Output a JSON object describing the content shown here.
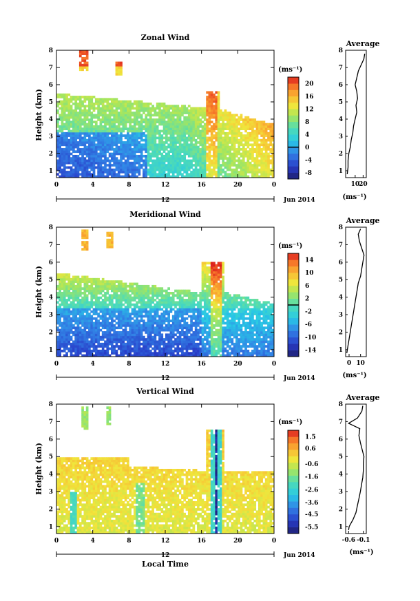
{
  "page": {
    "xlabel": "Local Time",
    "date_label": "Jun 2014",
    "day_label": "12"
  },
  "chart_data": [
    {
      "type": "heatmap",
      "title": "Zonal Wind",
      "ylabel": "Height (km)",
      "xlabel": "Local Time",
      "x_ticks": [
        "0",
        "4",
        "8",
        "12",
        "16",
        "20",
        "0"
      ],
      "y_ticks": [
        "1",
        "2",
        "3",
        "4",
        "5",
        "6",
        "7",
        "8"
      ],
      "xlim": [
        0,
        24
      ],
      "ylim": [
        0.6,
        8
      ],
      "colorbar": {
        "unit": "(ms⁻¹)",
        "ticks": [
          "20",
          "16",
          "12",
          "8",
          "4",
          "0",
          "-4",
          "-8"
        ],
        "range": [
          -10,
          22
        ],
        "zero_line": 0
      },
      "profile": {
        "title": "Average",
        "xlabel": "(ms⁻¹)",
        "x_ticks": [
          "10",
          "20"
        ],
        "xlim": [
          -2,
          24
        ],
        "height": [
          0.8,
          1.2,
          1.6,
          2.0,
          2.4,
          2.8,
          3.2,
          3.6,
          4.0,
          4.4,
          4.8,
          5.2,
          5.6,
          6.0,
          6.4,
          6.8,
          7.2,
          7.5,
          7.8
        ],
        "value": [
          0,
          1,
          1,
          2,
          4,
          5,
          7,
          8,
          10,
          12,
          11,
          13,
          12,
          10,
          12,
          14,
          18,
          21,
          22
        ]
      }
    },
    {
      "type": "heatmap",
      "title": "Meridional Wind",
      "ylabel": "Height (km)",
      "xlabel": "Local Time",
      "x_ticks": [
        "0",
        "4",
        "8",
        "12",
        "16",
        "20",
        "0"
      ],
      "y_ticks": [
        "1",
        "2",
        "3",
        "4",
        "5",
        "6",
        "7",
        "8"
      ],
      "xlim": [
        0,
        24
      ],
      "ylim": [
        0.6,
        8
      ],
      "colorbar": {
        "unit": "(ms⁻¹)",
        "ticks": [
          "14",
          "10",
          "6",
          "2",
          "-2",
          "-6",
          "-10",
          "-14"
        ],
        "range": [
          -16,
          16
        ],
        "zero_line": 0
      },
      "profile": {
        "title": "Average",
        "xlabel": "(ms⁻¹)",
        "x_ticks": [
          "0",
          "10"
        ],
        "xlim": [
          -3,
          15
        ],
        "height": [
          0.8,
          1.2,
          1.6,
          2.0,
          2.4,
          2.8,
          3.2,
          3.6,
          4.0,
          4.4,
          4.8,
          5.2,
          5.6,
          6.0,
          6.4,
          6.8,
          7.2,
          7.6,
          7.9
        ],
        "value": [
          -2,
          -1,
          0,
          1,
          2,
          3,
          4,
          5,
          6,
          7,
          8,
          10,
          11,
          12,
          13,
          11,
          9,
          8,
          10
        ]
      }
    },
    {
      "type": "heatmap",
      "title": "Vertical Wind",
      "ylabel": "Height (km)",
      "xlabel": "Local Time",
      "x_ticks": [
        "0",
        "4",
        "8",
        "12",
        "16",
        "20",
        "0"
      ],
      "y_ticks": [
        "1",
        "2",
        "3",
        "4",
        "5",
        "6",
        "7",
        "8"
      ],
      "xlim": [
        0,
        24
      ],
      "ylim": [
        0.6,
        8
      ],
      "colorbar": {
        "unit": "(ms⁻¹)",
        "ticks": [
          "1.5",
          "0.6",
          "-0.6",
          "-1.6",
          "-2.6",
          "-3.6",
          "-4.5",
          "-5.5"
        ],
        "range": [
          -6,
          2
        ],
        "zero_line": null
      },
      "profile": {
        "title": "Average",
        "xlabel": "(ms⁻¹)",
        "x_ticks": [
          "-0.6",
          "-0.1"
        ],
        "xlim": [
          -0.7,
          0.0
        ],
        "height": [
          0.8,
          1.0,
          1.4,
          1.8,
          2.2,
          2.6,
          3.0,
          3.4,
          3.8,
          4.2,
          4.6,
          5.0,
          5.4,
          5.8,
          6.2,
          6.6,
          6.9,
          7.2,
          7.6,
          7.9
        ],
        "value": [
          -0.6,
          -0.58,
          -0.45,
          -0.35,
          -0.3,
          -0.25,
          -0.2,
          -0.16,
          -0.12,
          -0.1,
          -0.1,
          -0.08,
          -0.14,
          -0.2,
          -0.25,
          -0.22,
          -0.6,
          -0.3,
          -0.15,
          -0.12
        ]
      }
    }
  ]
}
